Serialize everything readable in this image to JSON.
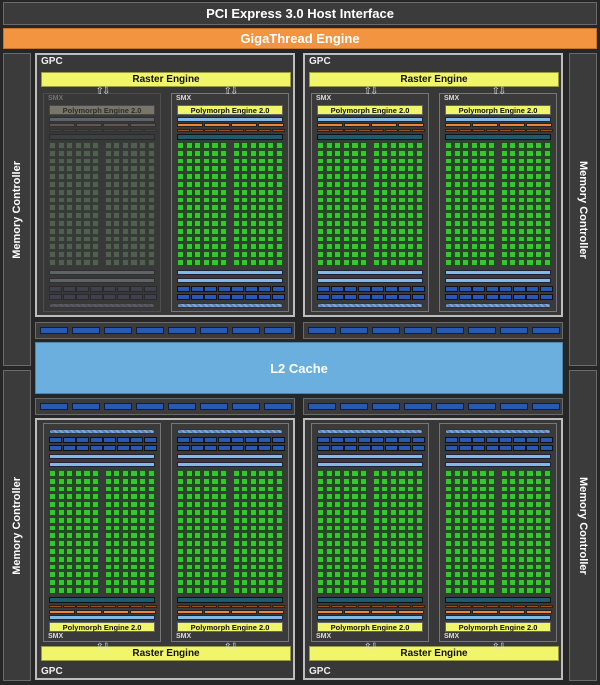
{
  "header": {
    "pci_label": "PCI Express 3.0 Host Interface",
    "gigathread_label": "GigaThread Engine"
  },
  "memory_controller_label": "Memory Controller",
  "l2_cache_label": "L2 Cache",
  "gpc": {
    "label": "GPC",
    "raster_label": "Raster Engine"
  },
  "smx": {
    "label": "SMX",
    "polymorph_label": "Polymorph Engine 2.0"
  },
  "gpcs": [
    {
      "position": "top-left",
      "smx": [
        {
          "disabled": true
        },
        {
          "disabled": false
        }
      ]
    },
    {
      "position": "top-right",
      "smx": [
        {
          "disabled": false
        },
        {
          "disabled": false
        }
      ]
    },
    {
      "position": "bottom-left",
      "smx": [
        {
          "disabled": false
        },
        {
          "disabled": false
        }
      ]
    },
    {
      "position": "bottom-right",
      "smx": [
        {
          "disabled": false
        },
        {
          "disabled": false
        }
      ]
    }
  ],
  "colors": {
    "gigathread": "#f39440",
    "raster": "#f1f56a",
    "l2": "#6aafdd",
    "cuda_core": "#33c92e",
    "background": "#262626"
  }
}
